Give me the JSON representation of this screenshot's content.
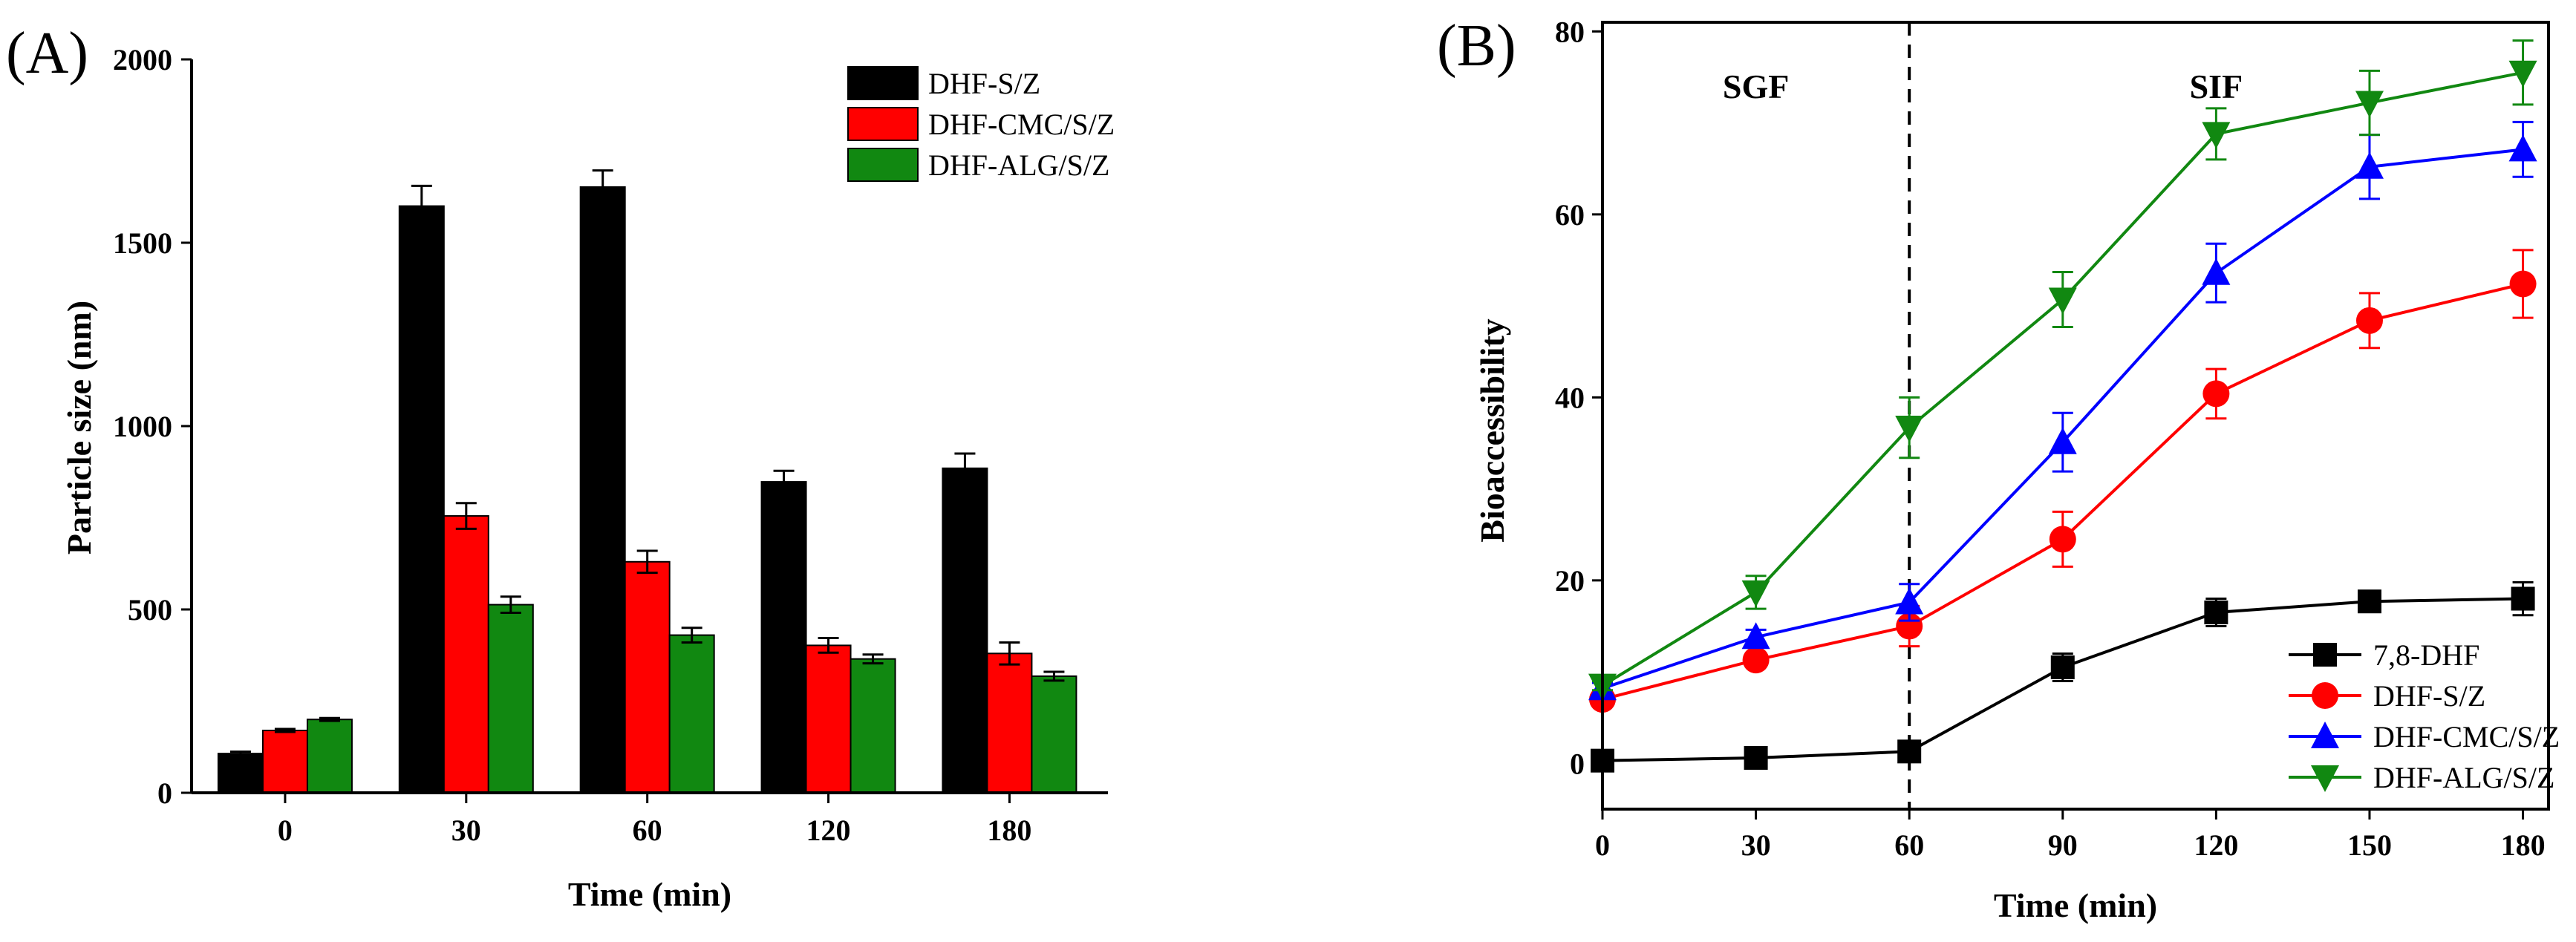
{
  "chart_data": [
    {
      "panel": "(A)",
      "type": "bar",
      "xlabel": "Time (min)",
      "ylabel": "Particle size (nm)",
      "ylim": [
        0,
        2000
      ],
      "yticks": [
        0,
        500,
        1000,
        1500,
        2000
      ],
      "categories": [
        "0",
        "30",
        "60",
        "120",
        "180"
      ],
      "legend_position": "top-right",
      "series": [
        {
          "name": "DHF-S/Z",
          "color": "#000000",
          "values": [
            107,
            1600,
            1652,
            848,
            885
          ],
          "errors": [
            5,
            55,
            45,
            30,
            40
          ]
        },
        {
          "name": "DHF-CMC/S/Z",
          "color": "#ff0000",
          "values": [
            170,
            755,
            630,
            402,
            380
          ],
          "errors": [
            4,
            35,
            30,
            20,
            30
          ]
        },
        {
          "name": "DHF-ALG/S/Z",
          "color": "#118811",
          "values": [
            200,
            513,
            430,
            365,
            318
          ],
          "errors": [
            4,
            22,
            20,
            12,
            12
          ]
        }
      ]
    },
    {
      "panel": "(B)",
      "type": "line",
      "xlabel": "Time (min)",
      "ylabel": "Bioaccessibility",
      "xlim": [
        0,
        185
      ],
      "ylim": [
        -5,
        81
      ],
      "xticks": [
        0,
        30,
        60,
        90,
        120,
        150,
        180
      ],
      "yticks": [
        0,
        20,
        40,
        60,
        80
      ],
      "x": [
        0,
        30,
        60,
        90,
        120,
        150,
        180
      ],
      "divider_x": 60,
      "phase_labels": [
        {
          "text": "SGF",
          "x": 30
        },
        {
          "text": "SIF",
          "x": 120
        }
      ],
      "legend_position": "bottom-right",
      "series": [
        {
          "name": "7,8-DHF",
          "color": "#000000",
          "marker": "square",
          "values": [
            0.3,
            0.6,
            1.3,
            10.5,
            16.5,
            17.7,
            18.0
          ],
          "errors": [
            0.8,
            0.7,
            0.8,
            1.5,
            1.5,
            1.0,
            1.8
          ]
        },
        {
          "name": "DHF-S/Z",
          "color": "#ff0000",
          "marker": "circle",
          "values": [
            7.0,
            11.3,
            15.0,
            24.5,
            40.4,
            48.4,
            52.4
          ],
          "errors": [
            0.5,
            0.8,
            2.2,
            3.0,
            2.7,
            3.0,
            3.7
          ]
        },
        {
          "name": "DHF-CMC/S/Z",
          "color": "#0000ff",
          "marker": "triangle-up",
          "values": [
            8.2,
            13.8,
            17.6,
            35.1,
            53.6,
            65.2,
            67.1
          ],
          "errors": [
            0.6,
            0.8,
            2.0,
            3.2,
            3.2,
            3.5,
            3.0
          ]
        },
        {
          "name": "DHF-ALG/S/Z",
          "color": "#118811",
          "marker": "triangle-down",
          "values": [
            8.5,
            18.7,
            36.7,
            50.7,
            68.8,
            72.2,
            75.5
          ],
          "errors": [
            0.5,
            1.8,
            3.3,
            3.0,
            2.8,
            3.5,
            3.5
          ]
        }
      ]
    }
  ]
}
